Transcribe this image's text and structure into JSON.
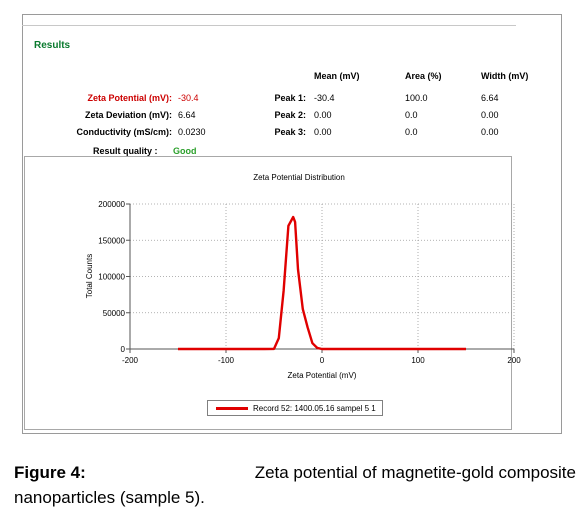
{
  "results": {
    "heading": "Results",
    "col_headers": [
      "Mean (mV)",
      "Area (%)",
      "Width (mV)"
    ],
    "zeta_potential": {
      "label": "Zeta Potential (mV):",
      "value": "-30.4"
    },
    "zeta_deviation": {
      "label": "Zeta Deviation (mV):",
      "value": "6.64"
    },
    "conductivity": {
      "label": "Conductivity (mS/cm):",
      "value": "0.0230"
    },
    "quality": {
      "label": "Result quality :",
      "value": "Good"
    },
    "peaks": [
      {
        "label": "Peak 1:",
        "mean": "-30.4",
        "area": "100.0",
        "width": "6.64"
      },
      {
        "label": "Peak 2:",
        "mean": "0.00",
        "area": "0.0",
        "width": "0.00"
      },
      {
        "label": "Peak 3:",
        "mean": "0.00",
        "area": "0.0",
        "width": "0.00"
      }
    ]
  },
  "colors": {
    "heading": "#0a7a2e",
    "zeta_red": "#cc0000",
    "good": "#2ca02c",
    "series": "#e00000"
  },
  "chart_data": {
    "type": "line",
    "title": "Zeta Potential Distribution",
    "xlabel": "Zeta Potential (mV)",
    "ylabel": "Total Counts",
    "xlim": [
      -200,
      200
    ],
    "ylim": [
      0,
      200000
    ],
    "xticks": [
      -200,
      -100,
      0,
      100,
      200
    ],
    "yticks": [
      0,
      50000,
      100000,
      150000,
      200000
    ],
    "grid": true,
    "legend_position": "bottom",
    "series": [
      {
        "name": "Record 52: 1400.05.16 sampel 5 1",
        "x": [
          -150,
          -60,
          -50,
          -45,
          -40,
          -35,
          -30,
          -28,
          -25,
          -20,
          -15,
          -10,
          -5,
          0,
          10,
          150
        ],
        "y": [
          0,
          0,
          200,
          15000,
          80000,
          170000,
          182000,
          175000,
          110000,
          55000,
          30000,
          8000,
          1500,
          0,
          0,
          0
        ]
      }
    ]
  },
  "caption": {
    "label": "Figure 4:",
    "text1": "Zeta potential of magnetite-gold composite",
    "text2": "nanoparticles (sample 5)."
  }
}
